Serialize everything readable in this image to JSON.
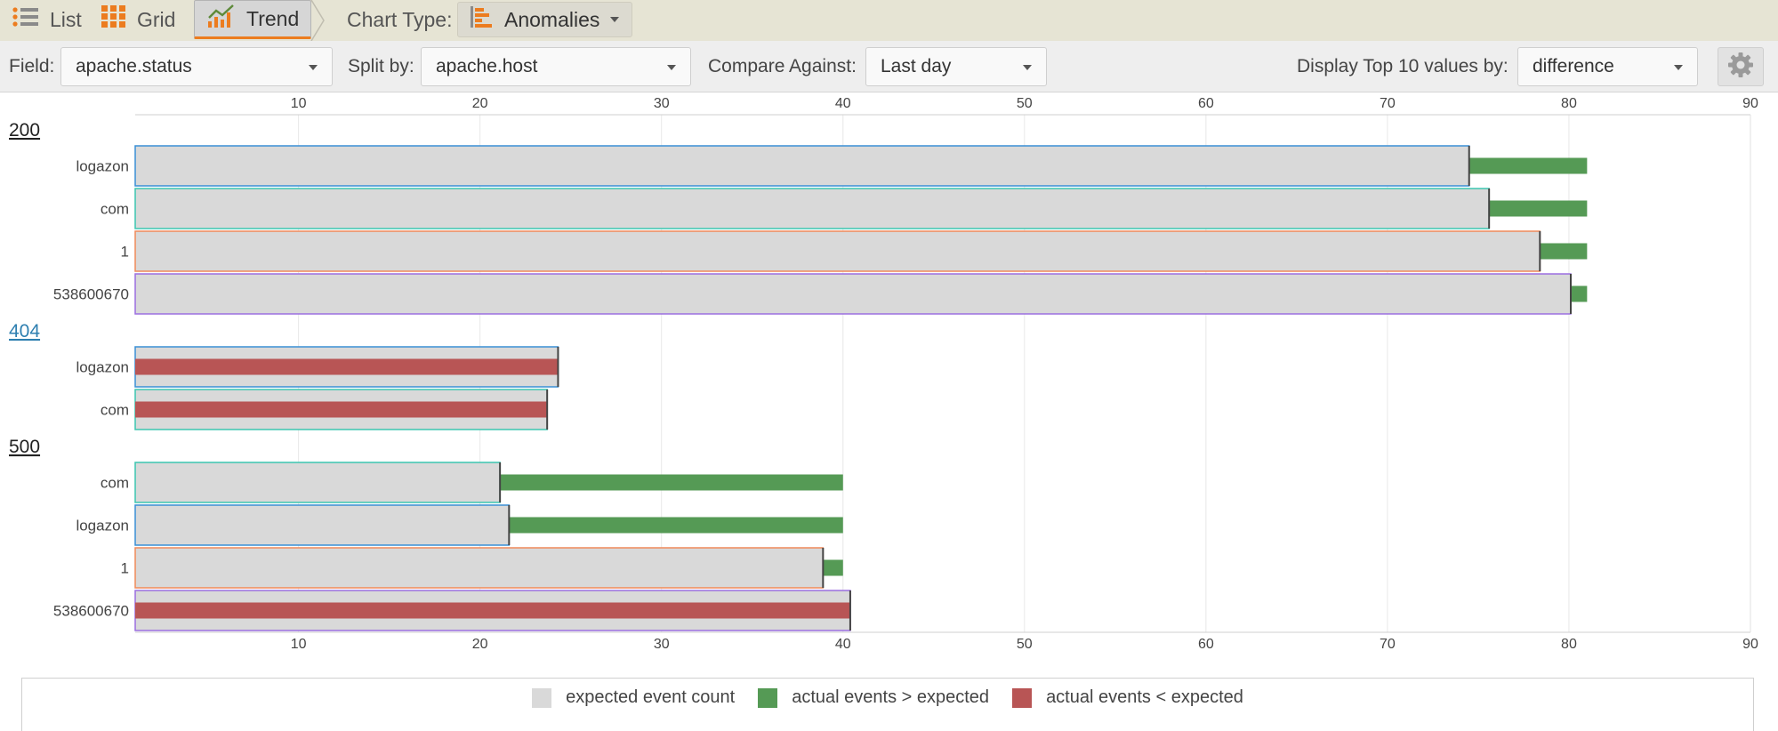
{
  "toolbar": {
    "tabs": [
      {
        "label": "List",
        "icon": "list-icon"
      },
      {
        "label": "Grid",
        "icon": "grid-icon"
      },
      {
        "label": "Trend",
        "icon": "trend-icon",
        "active": true
      }
    ],
    "chart_type_label": "Chart Type:",
    "chart_type_value": "Anomalies",
    "accent_color": "#ec7c1f"
  },
  "controls": {
    "field_label": "Field:",
    "field_value": "apache.status",
    "split_label": "Split by:",
    "split_value": "apache.host",
    "compare_label": "Compare Against:",
    "compare_value": "Last day",
    "display_label": "Display Top 10 values by:",
    "display_value": "difference"
  },
  "chart_data": {
    "type": "bar",
    "orientation": "horizontal",
    "x_ticks": [
      10,
      20,
      30,
      40,
      50,
      60,
      70,
      80,
      90
    ],
    "xlim": [
      1,
      90
    ],
    "groups": [
      {
        "label": "200",
        "link": false,
        "rows": [
          {
            "host": "logazon",
            "expected": 74.5,
            "actual": 81,
            "outline": "#3a8fd6"
          },
          {
            "host": "com",
            "expected": 75.6,
            "actual": 81,
            "outline": "#3cc6b0"
          },
          {
            "host": "1",
            "expected": 78.4,
            "actual": 81,
            "outline": "#f08a5a"
          },
          {
            "host": "538600670",
            "expected": 80.1,
            "actual": 81,
            "outline": "#9b6fe0"
          }
        ]
      },
      {
        "label": "404",
        "link": true,
        "rows": [
          {
            "host": "logazon",
            "expected": 24.3,
            "actual": 24.3,
            "outline": "#3a8fd6"
          },
          {
            "host": "com",
            "expected": 23.7,
            "actual": 23.7,
            "outline": "#3cc6b0"
          }
        ]
      },
      {
        "label": "500",
        "link": false,
        "rows": [
          {
            "host": "com",
            "expected": 21.1,
            "actual": 40,
            "outline": "#3cc6b0"
          },
          {
            "host": "logazon",
            "expected": 21.6,
            "actual": 40,
            "outline": "#3a8fd6"
          },
          {
            "host": "1",
            "expected": 38.9,
            "actual": 40,
            "outline": "#f08a5a"
          },
          {
            "host": "538600670",
            "expected": 40.4,
            "actual": 40,
            "outline": "#9b6fe0"
          }
        ]
      }
    ],
    "legend": [
      {
        "label": "expected event count",
        "color": "#d9d9d9"
      },
      {
        "label": "actual events > expected",
        "color": "#559a55"
      },
      {
        "label": "actual events < expected",
        "color": "#b85555"
      }
    ],
    "legend_position": "bottom",
    "grid": true
  }
}
